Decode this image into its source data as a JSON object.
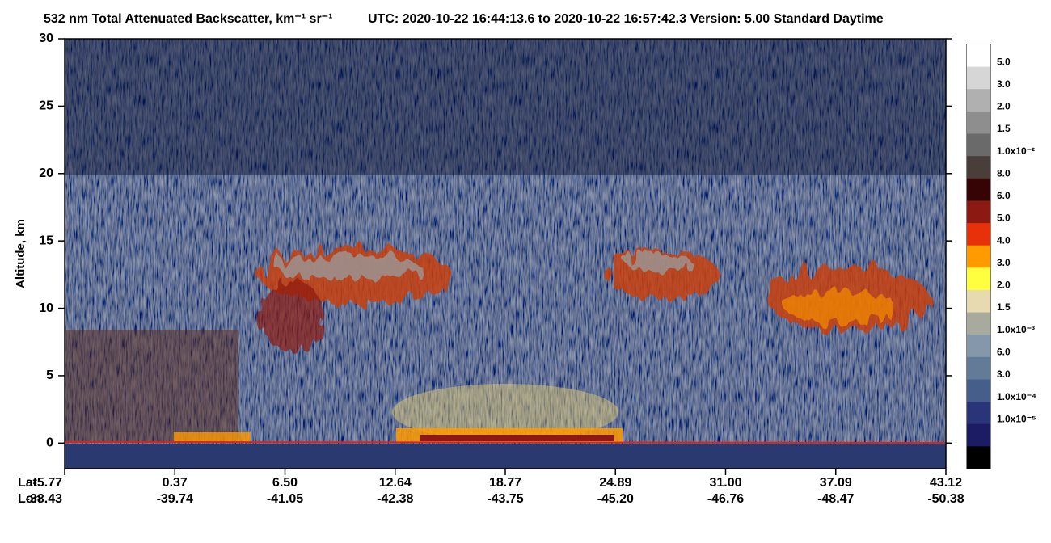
{
  "chart_data": {
    "type": "heatmap",
    "title": "532 nm Total Attenuated Backscatter, km⁻¹ sr⁻¹",
    "subtitle": "UTC:  2020-10-22 16:44:13.6  to  2020-10-22 16:57:42.3     Version: 5.00  Standard  Daytime",
    "y_label": "Altitude, km",
    "ylim": [
      -1.9,
      30
    ],
    "yticks": [
      0,
      5,
      10,
      15,
      20,
      25,
      30
    ],
    "x_row_labels": [
      "Lat",
      "Lon"
    ],
    "lat": [
      "-5.77",
      "0.37",
      "6.50",
      "12.64",
      "18.77",
      "24.89",
      "31.00",
      "37.09",
      "43.12"
    ],
    "lon": [
      "-38.43",
      "-39.74",
      "-41.05",
      "-42.38",
      "-43.75",
      "-45.20",
      "-46.76",
      "-48.47",
      "-50.38"
    ],
    "colorbar": {
      "colors": [
        "#ffffff",
        "#d6d6d6",
        "#b0b0b0",
        "#8e8e8e",
        "#6a6a6a",
        "#4a3e3a",
        "#360404",
        "#8c1a12",
        "#e8300a",
        "#ff9a00",
        "#ffff40",
        "#e8dab0",
        "#a9aa9e",
        "#8597aa",
        "#637b96",
        "#465f8a",
        "#2a3478",
        "#1c1c64",
        "#000000"
      ],
      "labels": [
        "5.0",
        "3.0",
        "2.0",
        "1.5",
        "1.0x10⁻²",
        "8.0",
        "6.0",
        "5.0",
        "4.0",
        "3.0",
        "2.0",
        "1.5",
        "1.0x10⁻³",
        "6.0",
        "3.0",
        "1.0x10⁻⁴",
        "1.0x10⁻⁵"
      ]
    }
  }
}
